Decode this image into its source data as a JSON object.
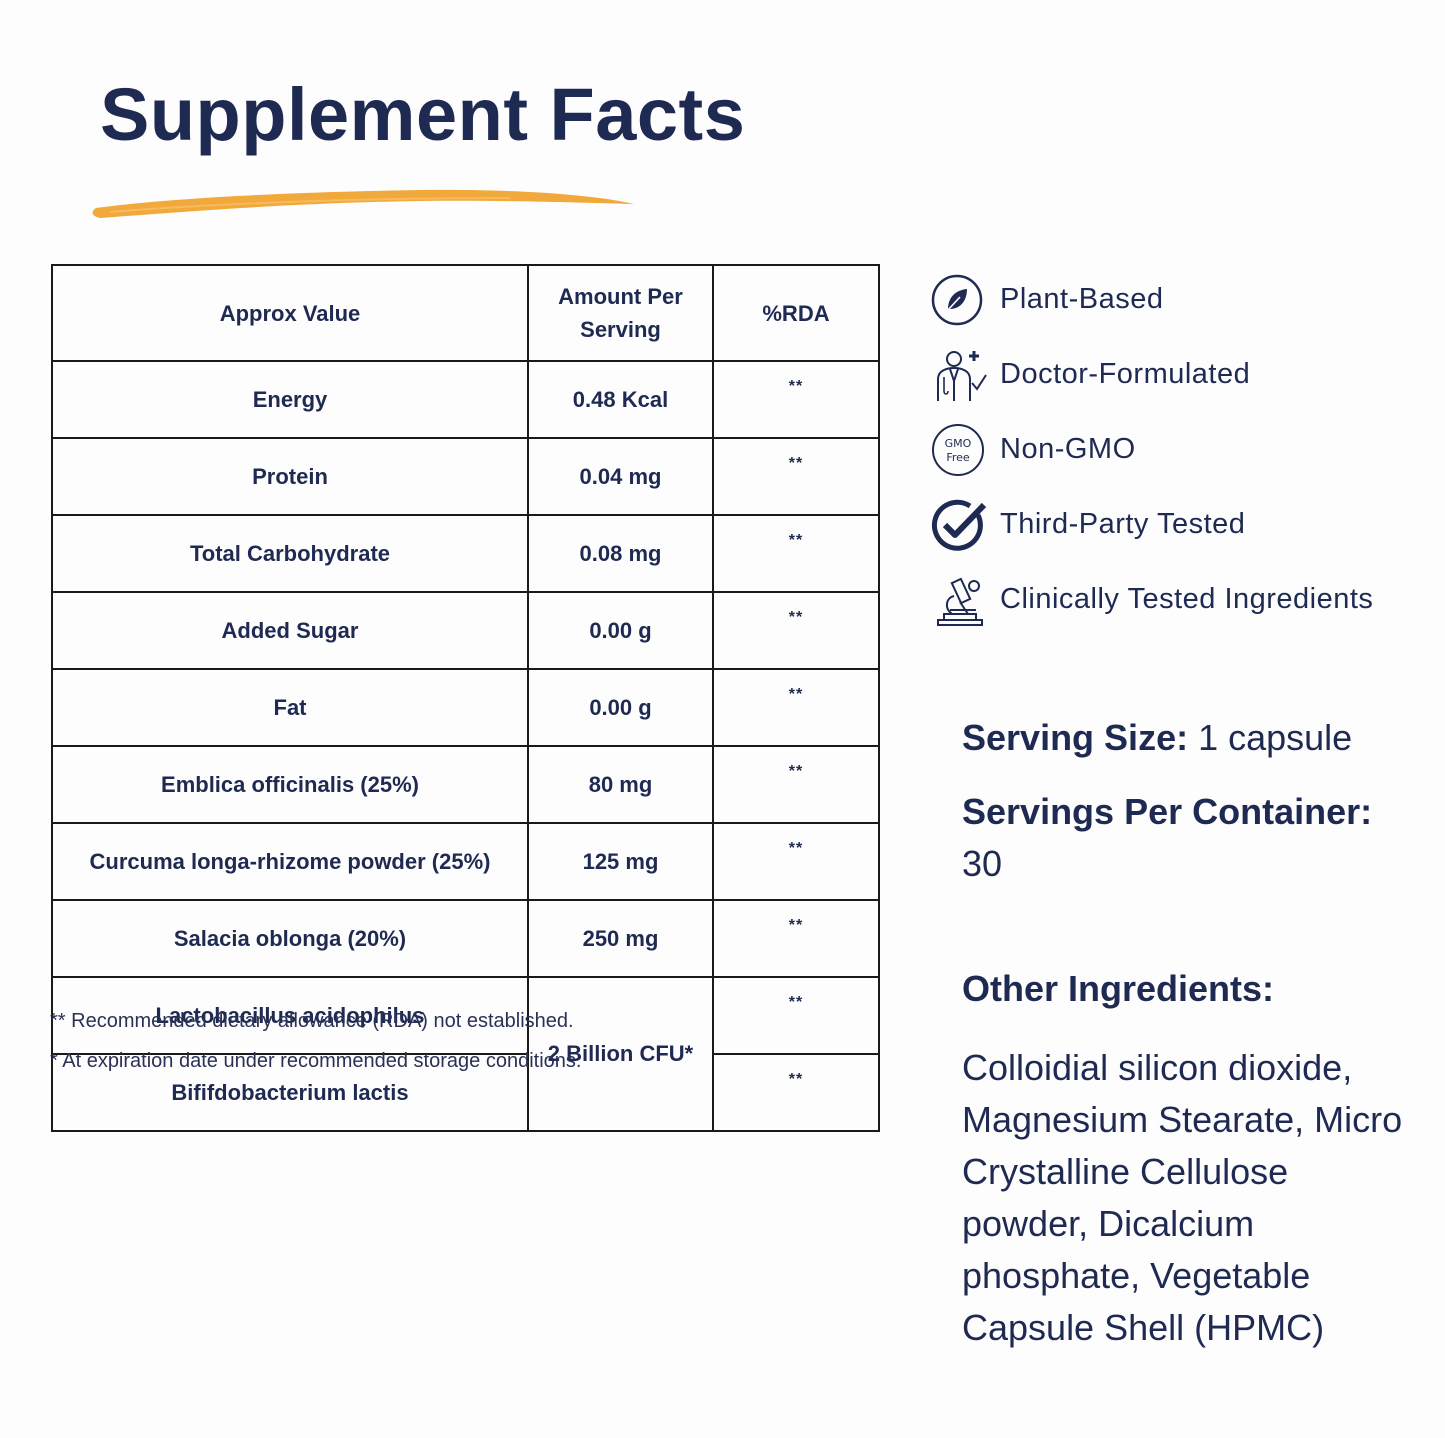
{
  "title": "Supplement Facts",
  "colors": {
    "navy": "#1f2a52",
    "accent_brush": "#f2a93b"
  },
  "table": {
    "headers": [
      "Approx Value",
      "Amount Per Serving",
      "%RDA"
    ],
    "rows": [
      {
        "name": "Energy",
        "amount": "0.48 Kcal",
        "rda": "**"
      },
      {
        "name": "Protein",
        "amount": "0.04 mg",
        "rda": "**"
      },
      {
        "name": "Total Carbohydrate",
        "amount": "0.08 mg",
        "rda": "**"
      },
      {
        "name": "Added Sugar",
        "amount": "0.00 g",
        "rda": "**"
      },
      {
        "name": "Fat",
        "amount": "0.00 g",
        "rda": "**"
      },
      {
        "name": "Emblica officinalis (25%)",
        "amount": "80 mg",
        "rda": "**"
      },
      {
        "name": "Curcuma longa-rhizome powder (25%)",
        "amount": "125 mg",
        "rda": "**"
      },
      {
        "name": "Salacia oblonga (20%)",
        "amount": "250 mg",
        "rda": "**"
      },
      {
        "name": "Lactobacillus acidophilus",
        "amount": "2 Billion CFU*",
        "rda": "**"
      },
      {
        "name": "Bififdobacterium lactis",
        "amount": "2 Billion CFU*",
        "rda": "**"
      }
    ]
  },
  "notes": [
    "** Recommended dietary allowance (RDA) not established.",
    "* At expiration date under recommended storage conditions."
  ],
  "features": [
    {
      "icon": "leaf-icon",
      "label": "Plant-Based"
    },
    {
      "icon": "doctor-icon",
      "label": "Doctor-Formulated"
    },
    {
      "icon": "gmo-free-icon",
      "label": "Non-GMO",
      "icon_text": [
        "GMO",
        "Free"
      ]
    },
    {
      "icon": "checkmark-icon",
      "label": "Third-Party Tested"
    },
    {
      "icon": "microscope-icon",
      "label": "Clinically Tested Ingredients"
    }
  ],
  "serving": {
    "size_label": "Serving Size:",
    "size_value": "1 capsule",
    "per_container_label": "Servings Per Container:",
    "per_container_value": "30"
  },
  "other_ingredients": {
    "heading": "Other Ingredients:",
    "text": "Colloidial silicon dioxide, Magnesium Stearate, Micro Crystalline Cellulose powder, Dicalcium phosphate, Vegetable Capsule Shell (HPMC)"
  }
}
